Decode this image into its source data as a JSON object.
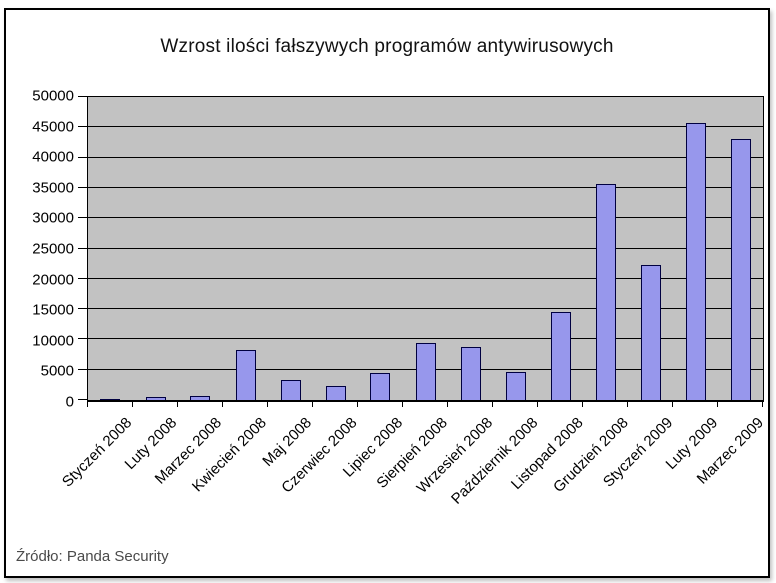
{
  "chart_data": {
    "type": "bar",
    "title": "Wzrost ilości fałszywych programów antywirusowych",
    "source": "Źródło: Panda Security",
    "categories": [
      "Styczeń 2008",
      "Luty 2008",
      "Marzec 2008",
      "Kwiecień 2008",
      "Maj 2008",
      "Czerwiec 2008",
      "Lipiec 2008",
      "Sierpień 2008",
      "Wrzesień 2008",
      "Październik 2008",
      "Listopad 2008",
      "Grudzień 2008",
      "Styczeń 2009",
      "Luty 2009",
      "Marzec 2009"
    ],
    "values": [
      150,
      500,
      700,
      8300,
      3300,
      2300,
      4400,
      9400,
      8700,
      4700,
      14600,
      35600,
      22300,
      45700,
      43100
    ],
    "xlabel": "",
    "ylabel": "",
    "ylim": [
      0,
      50000
    ],
    "ytick_step": 5000,
    "ytick_labels": [
      "0",
      "5000",
      "10000",
      "15000",
      "20000",
      "25000",
      "30000",
      "35000",
      "40000",
      "45000",
      "50000"
    ],
    "grid": true,
    "legend": false,
    "x_label_rotation_deg": 45,
    "colors": {
      "bar_fill": "#9797EC",
      "bar_border": "#000040",
      "plot_background": "#C2C2C2",
      "gridline": "#000000",
      "axis": "#000000",
      "title_text": "#111111",
      "source_text": "#4a4a4a",
      "frame_border": "#000000",
      "page_background": "#ffffff"
    }
  }
}
